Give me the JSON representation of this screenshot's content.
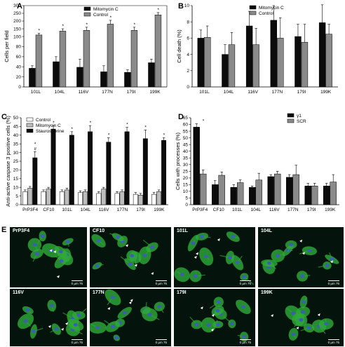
{
  "panel_labels": [
    "A",
    "B",
    "C",
    "D",
    "E"
  ],
  "colors": {
    "black": "#0b0b0b",
    "gray": "#8a8a8a",
    "white": "#ffffff",
    "lightgray": "#bdbdbd",
    "cell": "#2faa3a",
    "nucleus": "#3b5fb5",
    "bg": "#04140c"
  },
  "chart_data": [
    {
      "id": "A",
      "type": "bar",
      "ylabel": "Cells per field",
      "ylim": [
        0,
        300
      ],
      "yticks": [
        0,
        20,
        40,
        60,
        80,
        100,
        150,
        200,
        250,
        300
      ],
      "categories": [
        "101L",
        "104L",
        "116V",
        "177N",
        "179I",
        "199K"
      ],
      "series": [
        {
          "name": "Mitomycin C",
          "color": "#0b0b0b",
          "values": [
            37,
            50,
            39,
            30,
            29,
            48
          ],
          "errors": [
            5,
            10,
            16,
            12,
            5,
            7
          ]
        },
        {
          "name": "Control",
          "color": "#8a8a8a",
          "values": [
            110,
            135,
            140,
            180,
            140,
            240
          ],
          "errors": [
            10,
            15,
            20,
            25,
            20,
            15
          ]
        }
      ],
      "annotations": [
        "*",
        "*",
        "*",
        "*",
        "*",
        "*"
      ],
      "legend": "top-right"
    },
    {
      "id": "B",
      "type": "bar",
      "ylabel": "Cell death (%)",
      "ylim": [
        0,
        10
      ],
      "yticks": [
        0,
        2,
        4,
        6,
        8,
        10
      ],
      "categories": [
        "101L",
        "104L",
        "116V",
        "177N",
        "179I",
        "199K"
      ],
      "series": [
        {
          "name": "Mitomycin C",
          "color": "#0b0b0b",
          "values": [
            6.0,
            4.0,
            7.5,
            8.2,
            6.2,
            7.9
          ],
          "errors": [
            1.0,
            1.2,
            1.8,
            1.8,
            1.5,
            2.2
          ]
        },
        {
          "name": "Control",
          "color": "#8a8a8a",
          "values": [
            6.1,
            5.2,
            5.2,
            6.0,
            5.5,
            6.5
          ],
          "errors": [
            1.4,
            1.5,
            2.0,
            2.5,
            2.2,
            1.2
          ]
        }
      ],
      "legend": "top-right"
    },
    {
      "id": "C",
      "type": "bar",
      "ylabel": "Anti-active caspase 3 positive cells (%)",
      "ylim": [
        0,
        50
      ],
      "yticks": [
        0,
        5,
        10,
        15,
        20,
        25,
        30,
        35,
        40,
        45,
        50
      ],
      "categories": [
        "PrP3F4",
        "CF10",
        "101L",
        "104L",
        "116V",
        "177N",
        "179I",
        "199K"
      ],
      "series": [
        {
          "name": "Control",
          "color": "#ffffff",
          "values": [
            7.5,
            7.5,
            7.5,
            7.0,
            6.5,
            6.5,
            6.0,
            6.0
          ],
          "errors": [
            1.0,
            1.0,
            1.0,
            1.0,
            1.0,
            1.0,
            1.0,
            1.0
          ]
        },
        {
          "name": "Mitomycin C",
          "color": "#bdbdbd",
          "values": [
            9.5,
            9.0,
            8.5,
            7.5,
            9.0,
            7.5,
            5.5,
            7.5
          ],
          "errors": [
            1.0,
            1.0,
            1.0,
            1.0,
            1.0,
            1.0,
            1.0,
            1.0
          ]
        },
        {
          "name": "Staurosporine",
          "color": "#0b0b0b",
          "values": [
            27,
            43.5,
            40,
            42,
            36,
            42,
            38,
            37
          ],
          "errors": [
            3.5,
            2.0,
            2.0,
            3.5,
            2.5,
            2.5,
            5.0,
            1.5
          ]
        }
      ],
      "annotations": [
        "* #",
        "*",
        "*",
        "*",
        "*",
        "*",
        "*",
        "*"
      ],
      "legend": "top-left"
    },
    {
      "id": "D",
      "type": "bar",
      "ylabel": "Cells with processes (%)",
      "ylim": [
        0,
        65
      ],
      "yticks": [
        0,
        5,
        10,
        15,
        20,
        25,
        30,
        35,
        40,
        45,
        50,
        55,
        60,
        65
      ],
      "categories": [
        "PrP3F4",
        "CF10",
        "101L",
        "104L",
        "116V",
        "177N",
        "179I",
        "199K"
      ],
      "series": [
        {
          "name": "γ1",
          "color": "#0b0b0b",
          "values": [
            58,
            15,
            13,
            13,
            21,
            20.5,
            14,
            14
          ],
          "errors": [
            2.5,
            3.0,
            2.0,
            1.0,
            1.5,
            2.0,
            2.0,
            2.0
          ]
        },
        {
          "name": "SCR",
          "color": "#8a8a8a",
          "values": [
            23,
            22,
            16.5,
            18.5,
            23,
            22.5,
            14,
            17
          ],
          "errors": [
            3.0,
            2.5,
            2.0,
            5.0,
            2.0,
            7.0,
            2.0,
            5.5
          ]
        }
      ],
      "annotations": [
        "*",
        "",
        "",
        "",
        "",
        "",
        "",
        ""
      ],
      "legend": "top-right"
    }
  ],
  "micrographs": [
    {
      "label": "PrP3F4",
      "scale": "0    µm   75"
    },
    {
      "label": "CF10",
      "scale": "0    µm   75"
    },
    {
      "label": "101L",
      "scale": "0    µm   75"
    },
    {
      "label": "104L",
      "scale": "0    µm   75"
    },
    {
      "label": "116V",
      "scale": "0    µm   75"
    },
    {
      "label": "177N",
      "scale": "0    µm   75"
    },
    {
      "label": "179I",
      "scale": "0    µm   75"
    },
    {
      "label": "199K",
      "scale": "0    µm   75"
    }
  ]
}
